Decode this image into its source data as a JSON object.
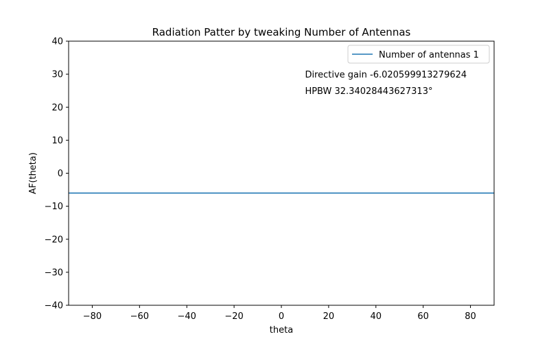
{
  "chart_data": {
    "type": "line",
    "title": "Radiation Patter by tweaking Number of Antennas",
    "xlabel": "theta",
    "ylabel": "AF(theta)",
    "xlim": [
      -90,
      90
    ],
    "ylim": [
      -40,
      40
    ],
    "xticks": [
      -80,
      -60,
      -40,
      -20,
      0,
      20,
      40,
      60,
      80
    ],
    "yticks": [
      -40,
      -30,
      -20,
      -10,
      0,
      10,
      20,
      30,
      40
    ],
    "xtick_labels": [
      "−80",
      "−60",
      "−40",
      "−20",
      "0",
      "20",
      "40",
      "60",
      "80"
    ],
    "ytick_labels": [
      "−40",
      "−30",
      "−20",
      "−10",
      "0",
      "10",
      "20",
      "30",
      "40"
    ],
    "grid": false,
    "legend_position": "top-right",
    "series": [
      {
        "name": "Number of antennas 1",
        "color": "#1f77b4",
        "x": [
          -90,
          90
        ],
        "y": [
          -6.020599913279624,
          -6.020599913279624
        ]
      }
    ],
    "annotations": [
      {
        "text": "Directive gain -6.020599913279624",
        "x": 10,
        "y": 30
      },
      {
        "text": "HPBW 32.34028443627313°",
        "x": 10,
        "y": 25
      }
    ]
  }
}
